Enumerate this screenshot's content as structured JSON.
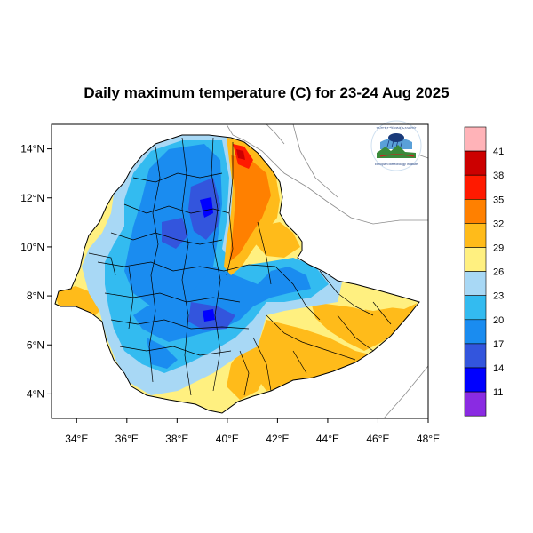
{
  "title": "Daily maximum temperature (C) for 23-24 Aug 2025",
  "chart_data": {
    "type": "heatmap",
    "title": "Daily maximum temperature (C) for 23-24 Aug 2025",
    "xlim": [
      33,
      48
    ],
    "ylim": [
      3,
      15
    ],
    "x_ticks": [
      "34°E",
      "36°E",
      "38°E",
      "40°E",
      "42°E",
      "44°E",
      "46°E",
      "48°E"
    ],
    "x_tick_values": [
      34,
      36,
      38,
      40,
      42,
      44,
      46,
      48
    ],
    "y_ticks": [
      "14°N",
      "12°N",
      "10°N",
      "8°N",
      "6°N",
      "4°N"
    ],
    "y_tick_values": [
      14,
      12,
      10,
      8,
      6,
      4
    ],
    "colorbar": {
      "labels": [
        "41",
        "38",
        "35",
        "32",
        "29",
        "26",
        "23",
        "20",
        "17",
        "14",
        "11"
      ],
      "colors": [
        "#ffb3b8",
        "#cc0000",
        "#ff1a00",
        "#ff8000",
        "#ffbb1a",
        "#fff080",
        "#a8d8f5",
        "#33bbf0",
        "#1a8cf0",
        "#3355dd",
        "#0000ff",
        "#8a2be2"
      ]
    }
  },
  "logo": {
    "arc_text": "የኢትዮጵያ ሜትሮሎጂ ኢንስቲትዩት",
    "bottom_text": "Ethiopian Meteorology Institute"
  }
}
